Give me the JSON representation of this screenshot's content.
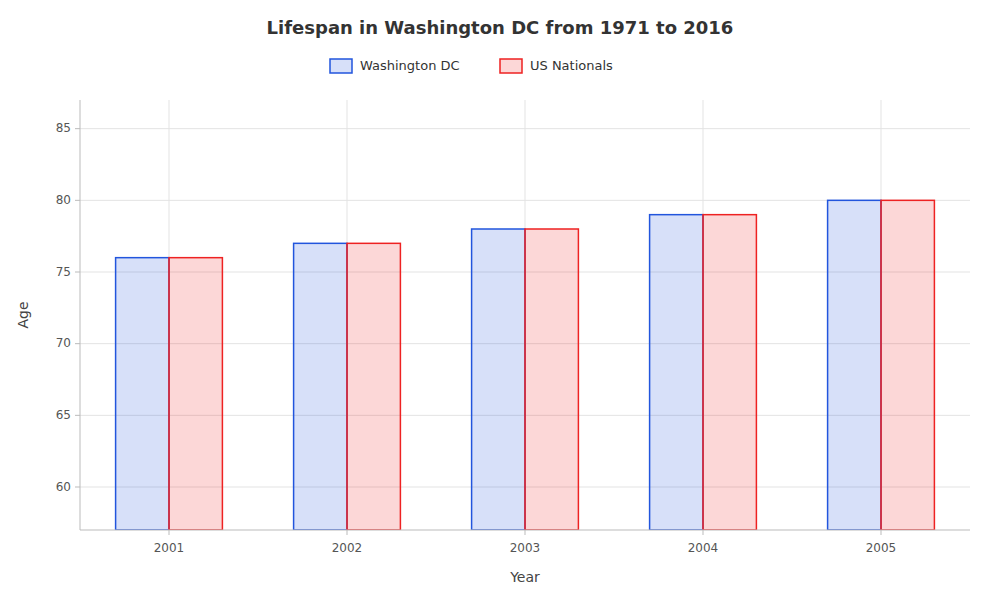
{
  "chart_data": {
    "type": "bar",
    "title": "Lifespan in Washington DC from 1971 to 2016",
    "x_label": "Year",
    "y_label": "Age",
    "categories": [
      "2001",
      "2002",
      "2003",
      "2004",
      "2005"
    ],
    "series": [
      {
        "name": "Washington DC",
        "color": "#2255dd",
        "values": [
          76.0,
          77.0,
          78.0,
          79.0,
          80.0
        ]
      },
      {
        "name": "US Nationals",
        "color": "#ee2222",
        "values": [
          76.0,
          77.0,
          78.0,
          79.0,
          80.0
        ]
      }
    ],
    "ylim": [
      57,
      87
    ],
    "yticks": [
      60,
      65,
      70,
      75,
      80,
      85
    ],
    "grid": true,
    "legend": "top"
  }
}
